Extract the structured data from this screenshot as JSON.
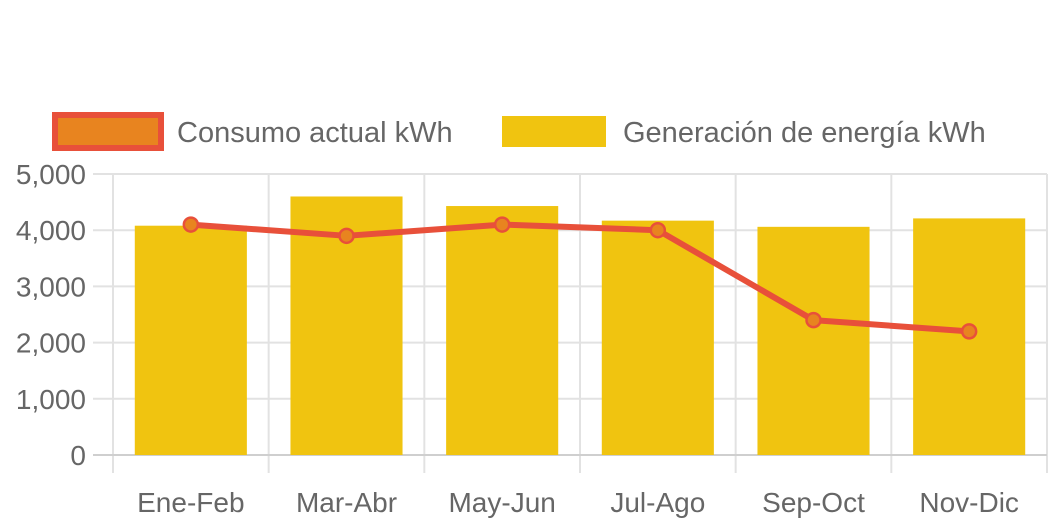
{
  "chart_data": {
    "type": "bar",
    "categories": [
      "Ene-Feb",
      "Mar-Abr",
      "May-Jun",
      "Jul-Ago",
      "Sep-Oct",
      "Nov-Dic"
    ],
    "series": [
      {
        "name": "Consumo actual kWh",
        "kind": "line",
        "values": [
          4100,
          3900,
          4100,
          4000,
          2400,
          2200
        ],
        "color": "#e8503a",
        "point_fill": "#e8841f"
      },
      {
        "name": "Generación de energía kWh",
        "kind": "bar",
        "values": [
          4080,
          4600,
          4430,
          4170,
          4060,
          4210
        ],
        "color": "#f0c410"
      }
    ],
    "y_ticks": [
      "0",
      "1,000",
      "2,000",
      "3,000",
      "4,000",
      "5,000"
    ],
    "ylim": [
      0,
      5000
    ],
    "grid": true,
    "legend_position": "top"
  }
}
